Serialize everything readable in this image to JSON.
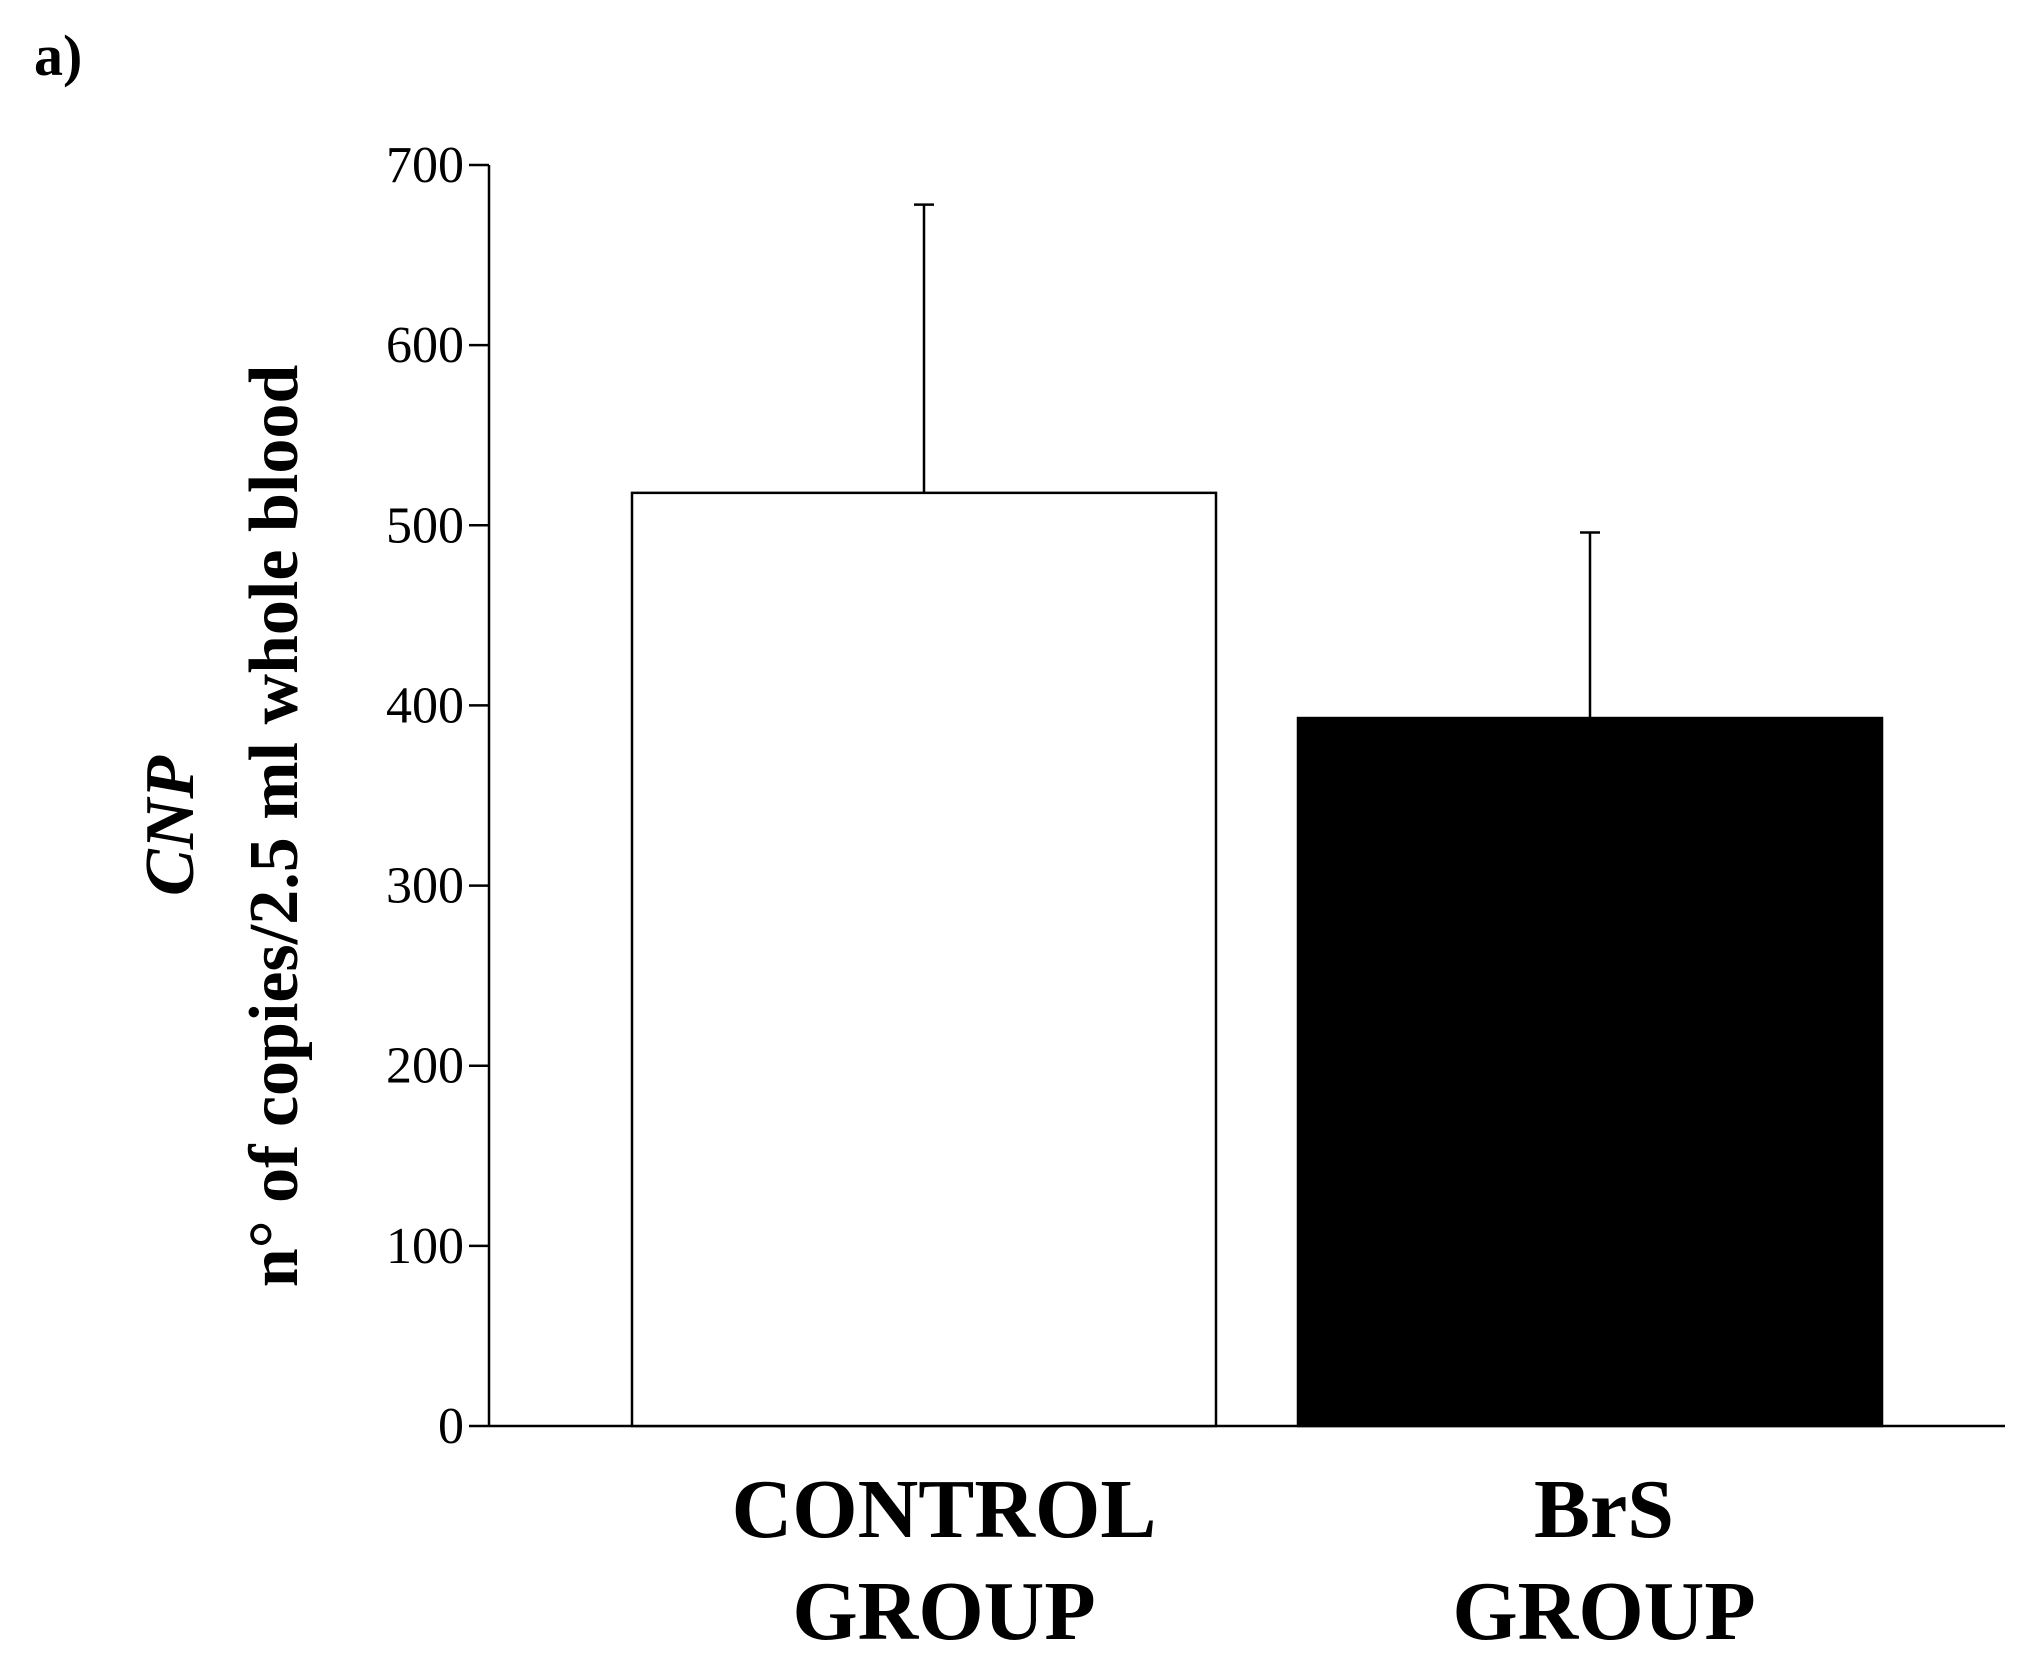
{
  "panel_label": "a)",
  "colors": {
    "axis": "#000000",
    "control_fill": "#ffffff",
    "brs_fill": "#000000"
  },
  "chart_data": {
    "type": "bar",
    "categories": [
      [
        "CONTROL",
        "GROUP"
      ],
      [
        "BrS",
        "GROUP"
      ]
    ],
    "values": [
      518,
      393
    ],
    "error_upper": [
      678,
      496
    ],
    "bar_fills": [
      "#ffffff",
      "#000000"
    ],
    "ylabel_line1": "CNP",
    "ylabel_line2": "n° of copies/2.5 ml whole blood",
    "xlabel": "",
    "ylim": [
      0,
      700
    ],
    "yticks": [
      0,
      100,
      200,
      300,
      400,
      500,
      600,
      700
    ],
    "grid": false,
    "legend": "none"
  }
}
